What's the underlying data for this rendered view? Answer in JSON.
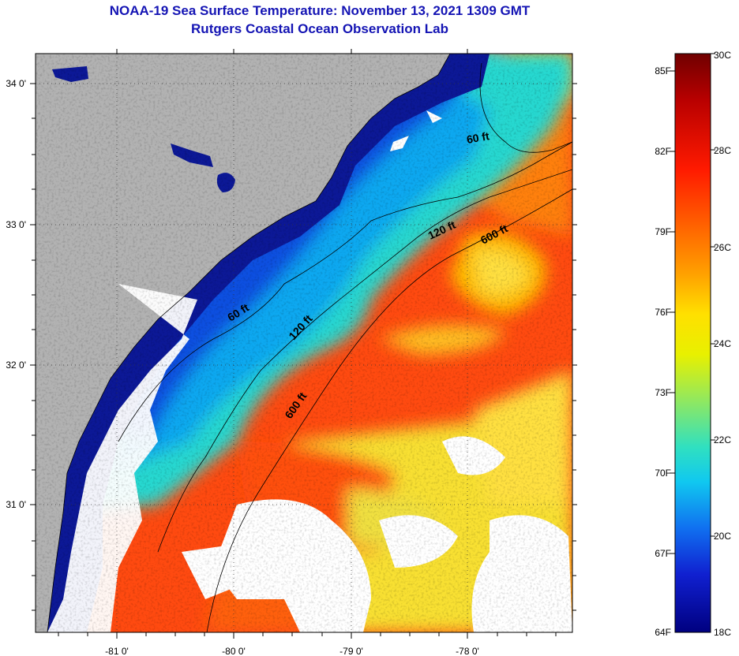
{
  "title": {
    "line1": "NOAA-19 Sea Surface Temperature:  November 13, 2021 1309 GMT",
    "line2": "Rutgers Coastal Ocean Observation Lab"
  },
  "map": {
    "lat_labels": [
      "34 0'",
      "33 0'",
      "32 0'",
      "31 0'"
    ],
    "lon_labels": [
      "-81 0'",
      "-80 0'",
      "-79 0'",
      "-78 0'"
    ],
    "contour_labels": [
      "60 ft",
      "120 ft",
      "600 ft",
      "60 ft",
      "120 ft",
      "600 ft"
    ]
  },
  "colorbar": {
    "fahrenheit_labels": [
      "85F",
      "82F",
      "79F",
      "76F",
      "73F",
      "70F",
      "67F",
      "64F"
    ],
    "celsius_labels": [
      "30C",
      "28C",
      "26C",
      "24C",
      "22C",
      "20C",
      "18C"
    ],
    "colors": [
      "#800000",
      "#c00000",
      "#ff2000",
      "#ff6a00",
      "#ffa000",
      "#ffd800",
      "#f0f000",
      "#b0f040",
      "#60e8a0",
      "#10e8e8",
      "#10a0f0",
      "#1050e8",
      "#1010c0",
      "#00007a"
    ]
  },
  "colors": {
    "land": "#b2b2b2",
    "cloud": "#ffffff",
    "title": "#1414b4"
  }
}
